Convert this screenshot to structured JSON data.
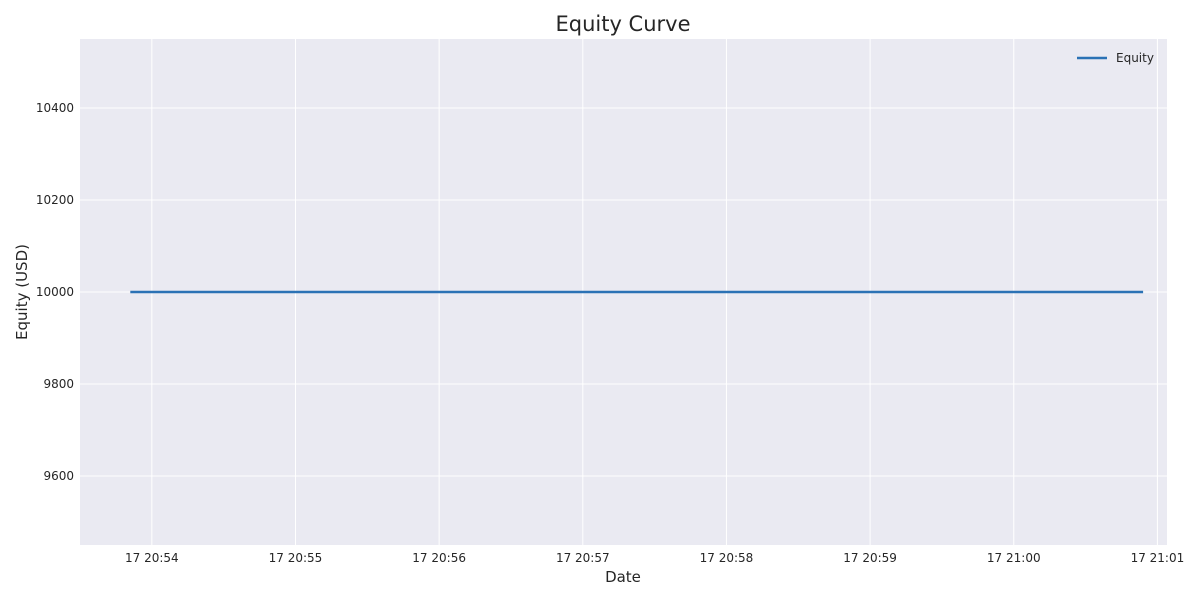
{
  "chart_data": {
    "type": "line",
    "title": "Equity Curve",
    "xlabel": "Date",
    "ylabel": "Equity (USD)",
    "x_ticks": [
      "17 20:54",
      "17 20:55",
      "17 20:56",
      "17 20:57",
      "17 20:58",
      "17 20:59",
      "17 21:00",
      "17 21:01"
    ],
    "y_ticks": [
      9600,
      9800,
      10000,
      10200,
      10400
    ],
    "ylim": [
      9450,
      10550
    ],
    "xlim": [
      "20:53:30",
      "21:01:04"
    ],
    "series": [
      {
        "name": "Equity",
        "color": "#2b72b5",
        "x": [
          "20:53:51",
          "21:00:54"
        ],
        "y": [
          10000,
          10000
        ]
      }
    ],
    "legend": "top-right",
    "grid": true,
    "colors": {
      "plot_background": "#eaeaf2",
      "grid": "#ffffff"
    }
  }
}
